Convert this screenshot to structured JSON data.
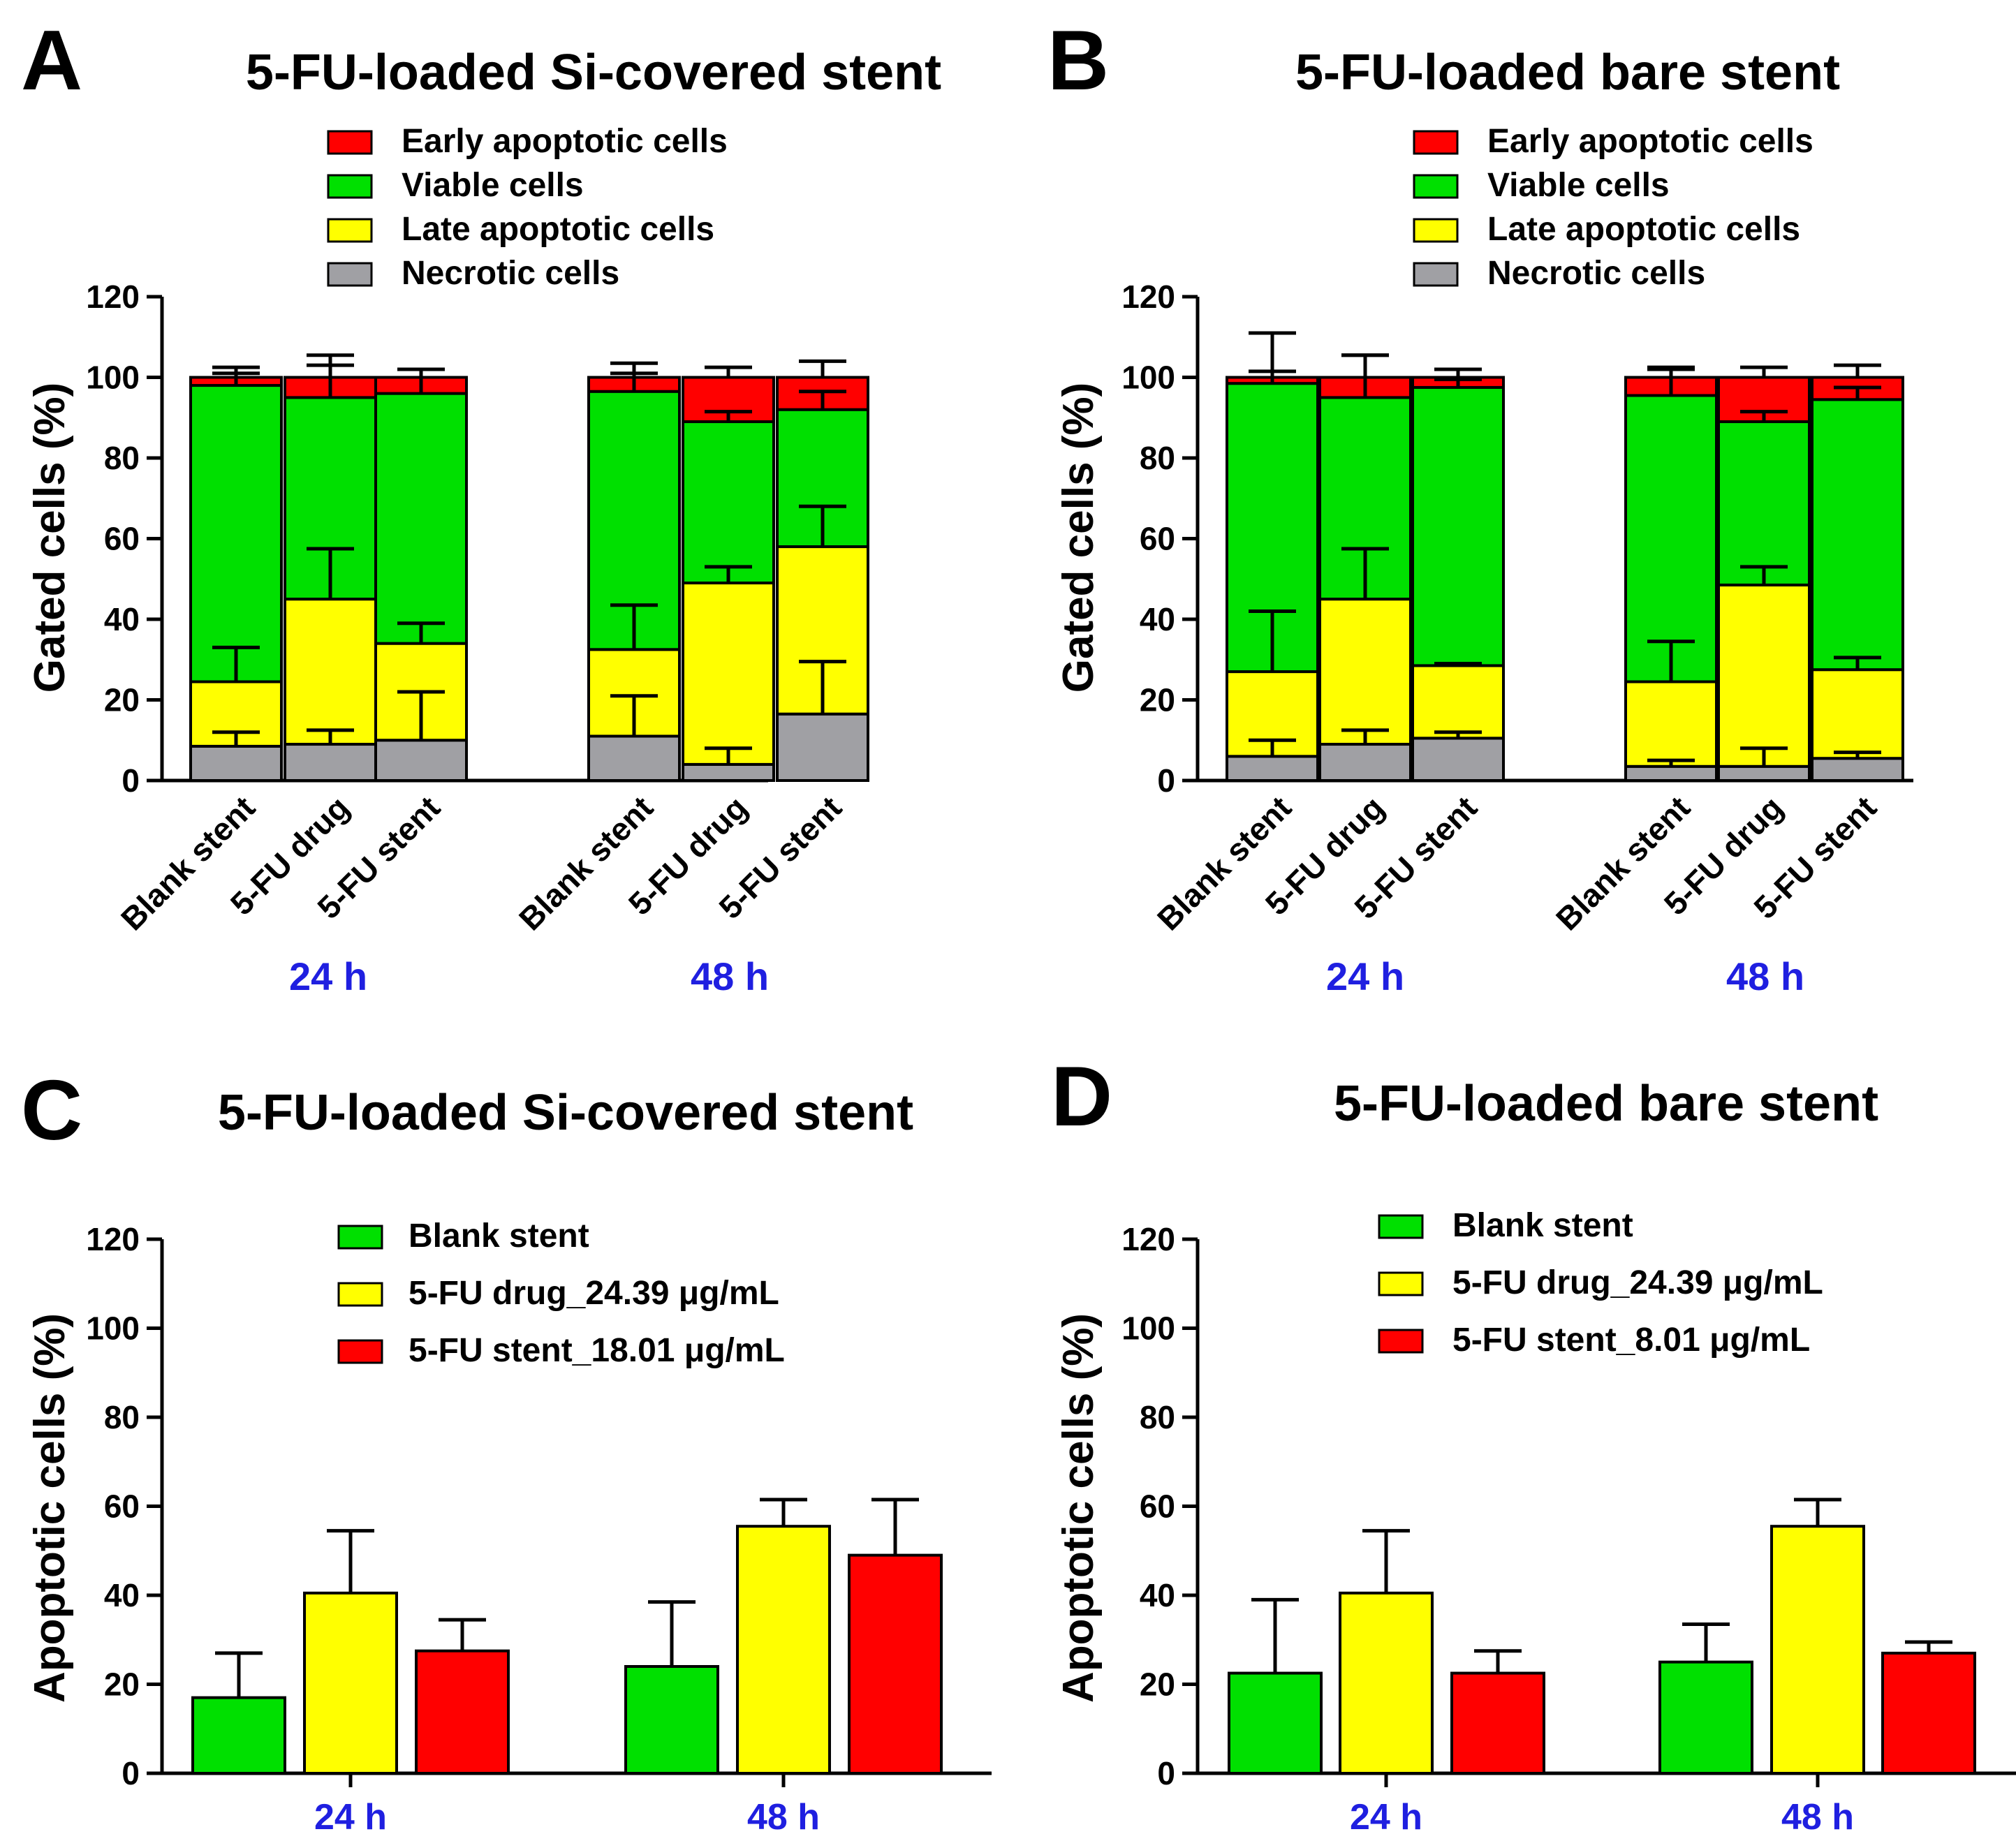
{
  "colors": {
    "early": "#ff0000",
    "viable": "#00e000",
    "late": "#ffff00",
    "necrotic": "#a0a0a4",
    "group_label": "#1f1fe0"
  },
  "chart_data": [
    {
      "panel": "A",
      "type": "stacked-bar",
      "title": "5-FU-loaded Si-covered stent",
      "ylabel": "Gated cells (%)",
      "ylim": [
        0,
        120
      ],
      "yticks": [
        "0",
        "20",
        "40",
        "60",
        "80",
        "100",
        "120"
      ],
      "groups": [
        "24 h",
        "48 h"
      ],
      "categories": [
        "Blank stent",
        "5-FU drug",
        "5-FU stent",
        "Blank stent",
        "5-FU drug",
        "5-FU stent"
      ],
      "series": [
        {
          "name": "Necrotic cells",
          "color_key": "necrotic",
          "values": [
            8.5,
            9,
            10,
            11,
            4,
            16.5
          ],
          "errors": [
            3.5,
            3.5,
            12,
            10,
            4,
            13
          ]
        },
        {
          "name": "Late apoptotic cells",
          "color_key": "late",
          "values": [
            16,
            36,
            24,
            21.5,
            45,
            41.5
          ],
          "errors": [
            8.5,
            12.5,
            5,
            11,
            4,
            10
          ]
        },
        {
          "name": "Viable cells",
          "color_key": "viable",
          "values": [
            73.5,
            50,
            62,
            64,
            40,
            34
          ],
          "errors": [
            3,
            10.5,
            6,
            4.5,
            2.5,
            4.5
          ]
        },
        {
          "name": "Early apoptotic cells",
          "color_key": "early",
          "values": [
            2,
            5,
            4,
            3.5,
            11,
            8
          ],
          "errors": [
            2.5,
            3,
            2,
            3.5,
            2.5,
            4
          ]
        }
      ],
      "legend_order": [
        "Early apoptotic cells",
        "Viable cells",
        "Late apoptotic cells",
        "Necrotic cells"
      ]
    },
    {
      "panel": "B",
      "type": "stacked-bar",
      "title": "5-FU-loaded bare stent",
      "ylabel": "Gated cells (%)",
      "ylim": [
        0,
        120
      ],
      "yticks": [
        "0",
        "20",
        "40",
        "60",
        "80",
        "100",
        "120"
      ],
      "groups": [
        "24 h",
        "48 h"
      ],
      "categories": [
        "Blank stent",
        "5-FU drug",
        "5-FU stent",
        "Blank stent",
        "5-FU drug",
        "5-FU stent"
      ],
      "series": [
        {
          "name": "Necrotic cells",
          "color_key": "necrotic",
          "values": [
            6,
            9,
            10.5,
            3.5,
            3.5,
            5.5
          ],
          "errors": [
            4,
            3.5,
            1.5,
            1.5,
            4.5,
            1.5
          ]
        },
        {
          "name": "Late apoptotic cells",
          "color_key": "late",
          "values": [
            21,
            36,
            18,
            21,
            45,
            22
          ],
          "errors": [
            15,
            12.5,
            0.5,
            10,
            4.5,
            3
          ]
        },
        {
          "name": "Viable cells",
          "color_key": "viable",
          "values": [
            71.5,
            50,
            69,
            71,
            40.5,
            67
          ],
          "errors": [
            3,
            10.5,
            2,
            6.5,
            2.5,
            3
          ]
        },
        {
          "name": "Early apoptotic cells",
          "color_key": "early",
          "values": [
            1.5,
            5,
            2.5,
            4.5,
            11,
            5.5
          ],
          "errors": [
            11,
            5.5,
            2,
            2.5,
            2.5,
            3
          ]
        }
      ],
      "legend_order": [
        "Early apoptotic cells",
        "Viable cells",
        "Late apoptotic cells",
        "Necrotic cells"
      ]
    },
    {
      "panel": "C",
      "type": "bar",
      "title": "5-FU-loaded Si-covered stent",
      "ylabel": "Apoptotic cells (%)",
      "ylim": [
        0,
        120
      ],
      "yticks": [
        "0",
        "20",
        "40",
        "60",
        "80",
        "100",
        "120"
      ],
      "categories": [
        "24 h",
        "48 h"
      ],
      "series": [
        {
          "name": "Blank stent",
          "color_key": "viable",
          "values": [
            17,
            24
          ],
          "errors": [
            10,
            14.5
          ]
        },
        {
          "name": "5-FU drug_24.39 μg/mL",
          "color_key": "late",
          "values": [
            40.5,
            55.5
          ],
          "errors": [
            14,
            6
          ]
        },
        {
          "name": "5-FU stent_18.01 μg/mL",
          "color_key": "early",
          "values": [
            27.5,
            49
          ],
          "errors": [
            7,
            12.5
          ]
        }
      ]
    },
    {
      "panel": "D",
      "type": "bar",
      "title": "5-FU-loaded bare stent",
      "ylabel": "Apoptotic cells (%)",
      "ylim": [
        0,
        120
      ],
      "yticks": [
        "0",
        "20",
        "40",
        "60",
        "80",
        "100",
        "120"
      ],
      "categories": [
        "24 h",
        "48 h"
      ],
      "series": [
        {
          "name": "Blank stent",
          "color_key": "viable",
          "values": [
            22.5,
            25
          ],
          "errors": [
            16.5,
            8.5
          ]
        },
        {
          "name": "5-FU drug_24.39 μg/mL",
          "color_key": "late",
          "values": [
            40.5,
            55.5
          ],
          "errors": [
            14,
            6
          ]
        },
        {
          "name": "5-FU stent_8.01 μg/mL",
          "color_key": "early",
          "values": [
            22.5,
            27
          ],
          "errors": [
            5,
            2.5
          ]
        }
      ]
    }
  ]
}
